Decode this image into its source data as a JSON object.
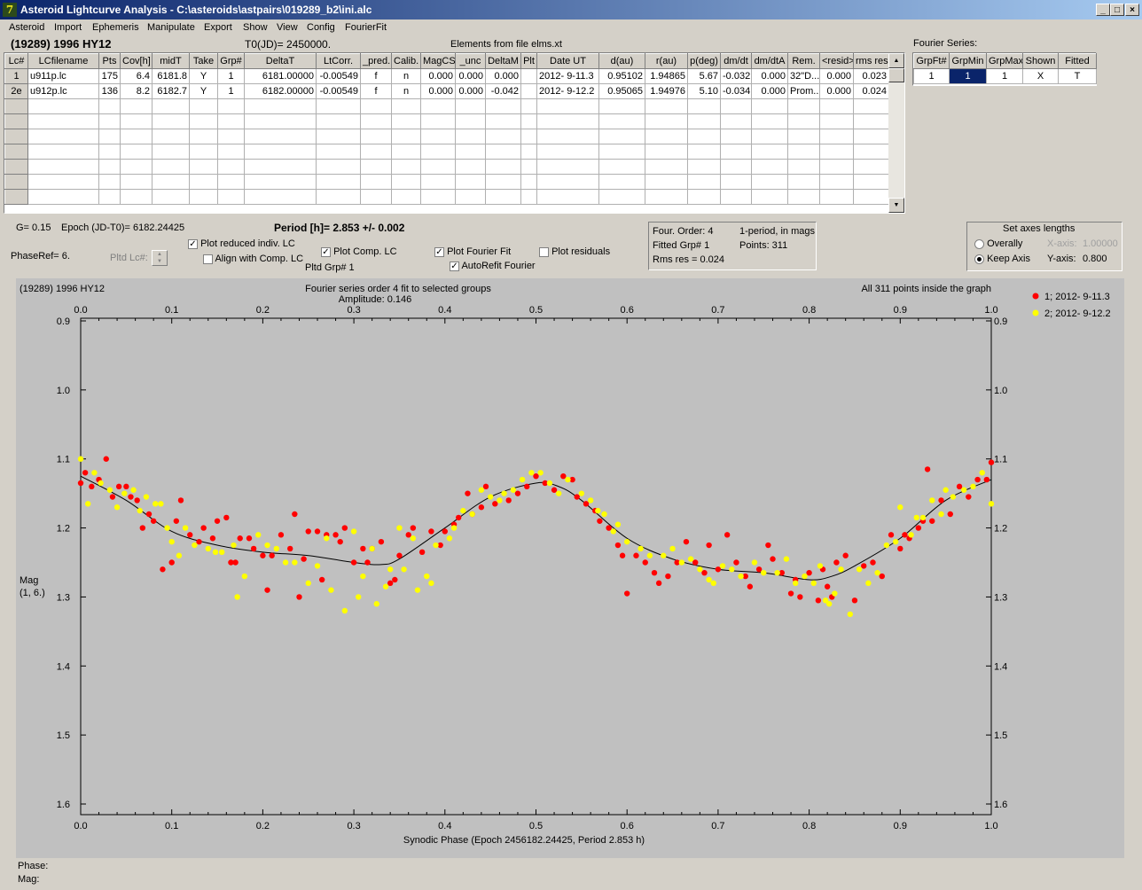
{
  "window": {
    "title": "Asteroid Lightcurve Analysis - C:\\asteroids\\astpairs\\019289_b2\\ini.alc",
    "min": "_",
    "max": "□",
    "close": "×"
  },
  "menu": [
    "Asteroid",
    "Import",
    "Ephemeris",
    "Manipulate",
    "Export",
    "Show",
    "View",
    "Config",
    "FourierFit"
  ],
  "header": {
    "asteroid": "(19289) 1996 HY12",
    "t0": "T0(JD)= 2450000.",
    "elements": "Elements from file elms.xt"
  },
  "lc_table": {
    "columns": [
      "Lc#",
      "LCfilename",
      "Pts",
      "Cov[h]",
      "midT",
      "Take",
      "Grp#",
      "DeltaT",
      "LtCorr.",
      "_pred.",
      "Calib.",
      "MagCS",
      "_unc",
      "DeltaM",
      "Plt",
      "Date UT",
      "d(au)",
      "r(au)",
      "p(deg)",
      "dm/dt",
      "dm/dtA",
      "Rem.",
      "<resid>",
      "rms res"
    ],
    "rows": [
      [
        "1",
        "u911p.lc",
        "175",
        "6.4",
        "6181.8",
        "Y",
        "1",
        "6181.00000",
        "-0.00549",
        "f",
        "n",
        "0.000",
        "0.000",
        "0.000",
        "",
        "2012- 9-11.3",
        "0.95102",
        "1.94865",
        "5.67",
        "-0.032",
        "0.000",
        "32\"D...",
        "0.000",
        "0.023"
      ],
      [
        "2e",
        "u912p.lc",
        "136",
        "8.2",
        "6182.7",
        "Y",
        "1",
        "6182.00000",
        "-0.00549",
        "f",
        "n",
        "0.000",
        "0.000",
        "-0.042",
        "",
        "2012- 9-12.2",
        "0.95065",
        "1.94976",
        "5.10",
        "-0.034",
        "0.000",
        "Prom...",
        "0.000",
        "0.024"
      ]
    ]
  },
  "fourier_series": {
    "label": "Fourier Series:",
    "columns": [
      "GrpFt#",
      "GrpMin",
      "GrpMax",
      "Shown",
      "Fitted"
    ],
    "row": [
      "1",
      "1",
      "1",
      "X",
      "T"
    ]
  },
  "controls": {
    "g": "G= 0.15",
    "epoch": "Epoch (JD-T0)= 6182.24425",
    "period": "Period [h]= 2.853 +/- 0.002",
    "phaseref": "PhaseRef= 6.",
    "pltd_lc": "Pltd Lc#:",
    "plot_reduced": "Plot reduced indiv. LC",
    "align_comp": "Align with Comp. LC",
    "plot_comp": "Plot Comp. LC",
    "pltd_grp": "Pltd Grp#  1",
    "plot_fourier": "Plot Fourier Fit",
    "autorefit": "AutoRefit Fourier",
    "plot_residuals": "Plot residuals"
  },
  "fit_info": {
    "order": "Four. Order:  4",
    "period_mode": "1-period, in mags",
    "fitted_grp": "Fitted Grp# 1",
    "points": "Points: 311",
    "rms": "Rms res     = 0.024"
  },
  "axes_panel": {
    "title": "Set axes lengths",
    "overally": "Overally",
    "keep_axis": "Keep Axis",
    "x_label": "X-axis:",
    "x_value": "1.00000",
    "y_label": "Y-axis:",
    "y_value": "0.800"
  },
  "status": {
    "phase": "Phase:",
    "mag": "Mag:"
  },
  "colors": {
    "series1": "#ff0000",
    "series2": "#ffff00",
    "plot_bg": "#c0c0c0",
    "fit": "#000000"
  },
  "chart_data": {
    "type": "scatter",
    "object_label": "(19289) 1996 HY12",
    "title": "Fourier series order 4 fit to selected groups",
    "subtitle": "Amplitude: 0.146",
    "note": "All 311 points inside the graph",
    "xlabel": "Synodic Phase (Epoch 2456182.24425, Period 2.853 h)",
    "ylabel": [
      "Mag",
      "(1, 6.)"
    ],
    "xlim": [
      0,
      1
    ],
    "ylim": [
      1.6,
      0.9
    ],
    "y_inverted": true,
    "xticks": [
      "0.0",
      "0.1",
      "0.2",
      "0.3",
      "0.4",
      "0.5",
      "0.6",
      "0.7",
      "0.8",
      "0.9",
      "1.0"
    ],
    "yticks": [
      "0.9",
      "1.0",
      "1.1",
      "1.2",
      "1.3",
      "1.4",
      "1.5",
      "1.6"
    ],
    "legend_position": "right",
    "series": [
      {
        "name": "1; 2012- 9-11.3",
        "color": "#ff0000",
        "points": [
          [
            0.0,
            1.135
          ],
          [
            0.005,
            1.12
          ],
          [
            0.012,
            1.14
          ],
          [
            0.02,
            1.13
          ],
          [
            0.028,
            1.1
          ],
          [
            0.035,
            1.155
          ],
          [
            0.042,
            1.14
          ],
          [
            0.05,
            1.14
          ],
          [
            0.055,
            1.155
          ],
          [
            0.062,
            1.16
          ],
          [
            0.068,
            1.2
          ],
          [
            0.075,
            1.18
          ],
          [
            0.08,
            1.19
          ],
          [
            0.09,
            1.26
          ],
          [
            0.1,
            1.25
          ],
          [
            0.105,
            1.19
          ],
          [
            0.11,
            1.16
          ],
          [
            0.12,
            1.21
          ],
          [
            0.13,
            1.22
          ],
          [
            0.135,
            1.2
          ],
          [
            0.145,
            1.215
          ],
          [
            0.15,
            1.19
          ],
          [
            0.16,
            1.185
          ],
          [
            0.165,
            1.25
          ],
          [
            0.17,
            1.25
          ],
          [
            0.175,
            1.215
          ],
          [
            0.185,
            1.215
          ],
          [
            0.19,
            1.23
          ],
          [
            0.2,
            1.24
          ],
          [
            0.205,
            1.29
          ],
          [
            0.21,
            1.24
          ],
          [
            0.22,
            1.21
          ],
          [
            0.23,
            1.23
          ],
          [
            0.235,
            1.18
          ],
          [
            0.24,
            1.3
          ],
          [
            0.245,
            1.245
          ],
          [
            0.25,
            1.205
          ],
          [
            0.26,
            1.205
          ],
          [
            0.265,
            1.275
          ],
          [
            0.27,
            1.21
          ],
          [
            0.28,
            1.21
          ],
          [
            0.285,
            1.22
          ],
          [
            0.29,
            1.2
          ],
          [
            0.3,
            1.25
          ],
          [
            0.31,
            1.23
          ],
          [
            0.315,
            1.25
          ],
          [
            0.32,
            1.23
          ],
          [
            0.33,
            1.22
          ],
          [
            0.34,
            1.28
          ],
          [
            0.345,
            1.275
          ],
          [
            0.35,
            1.24
          ],
          [
            0.36,
            1.21
          ],
          [
            0.365,
            1.2
          ],
          [
            0.375,
            1.235
          ],
          [
            0.385,
            1.205
          ],
          [
            0.395,
            1.225
          ],
          [
            0.4,
            1.205
          ],
          [
            0.41,
            1.195
          ],
          [
            0.415,
            1.185
          ],
          [
            0.425,
            1.15
          ],
          [
            0.43,
            1.18
          ],
          [
            0.44,
            1.17
          ],
          [
            0.445,
            1.14
          ],
          [
            0.455,
            1.165
          ],
          [
            0.47,
            1.16
          ],
          [
            0.48,
            1.15
          ],
          [
            0.49,
            1.14
          ],
          [
            0.5,
            1.125
          ],
          [
            0.51,
            1.135
          ],
          [
            0.52,
            1.145
          ],
          [
            0.53,
            1.125
          ],
          [
            0.54,
            1.13
          ],
          [
            0.545,
            1.155
          ],
          [
            0.555,
            1.165
          ],
          [
            0.565,
            1.175
          ],
          [
            0.57,
            1.19
          ],
          [
            0.58,
            1.2
          ],
          [
            0.59,
            1.225
          ],
          [
            0.595,
            1.24
          ],
          [
            0.6,
            1.295
          ],
          [
            0.61,
            1.24
          ],
          [
            0.62,
            1.25
          ],
          [
            0.63,
            1.265
          ],
          [
            0.635,
            1.28
          ],
          [
            0.645,
            1.27
          ],
          [
            0.655,
            1.25
          ],
          [
            0.665,
            1.22
          ],
          [
            0.675,
            1.25
          ],
          [
            0.685,
            1.265
          ],
          [
            0.69,
            1.225
          ],
          [
            0.7,
            1.26
          ],
          [
            0.71,
            1.21
          ],
          [
            0.72,
            1.25
          ],
          [
            0.73,
            1.27
          ],
          [
            0.735,
            1.285
          ],
          [
            0.745,
            1.26
          ],
          [
            0.755,
            1.225
          ],
          [
            0.76,
            1.245
          ],
          [
            0.77,
            1.265
          ],
          [
            0.78,
            1.295
          ],
          [
            0.785,
            1.275
          ],
          [
            0.79,
            1.3
          ],
          [
            0.8,
            1.265
          ],
          [
            0.81,
            1.305
          ],
          [
            0.815,
            1.26
          ],
          [
            0.82,
            1.285
          ],
          [
            0.825,
            1.3
          ],
          [
            0.83,
            1.25
          ],
          [
            0.84,
            1.24
          ],
          [
            0.85,
            1.305
          ],
          [
            0.86,
            1.255
          ],
          [
            0.87,
            1.25
          ],
          [
            0.88,
            1.27
          ],
          [
            0.89,
            1.21
          ],
          [
            0.9,
            1.23
          ],
          [
            0.905,
            1.21
          ],
          [
            0.91,
            1.215
          ],
          [
            0.92,
            1.2
          ],
          [
            0.925,
            1.19
          ],
          [
            0.93,
            1.115
          ],
          [
            0.935,
            1.19
          ],
          [
            0.945,
            1.16
          ],
          [
            0.955,
            1.18
          ],
          [
            0.965,
            1.14
          ],
          [
            0.975,
            1.155
          ],
          [
            0.985,
            1.13
          ],
          [
            0.995,
            1.13
          ],
          [
            1.0,
            1.105
          ]
        ]
      },
      {
        "name": "2; 2012- 9-12.2",
        "color": "#ffff00",
        "points": [
          [
            0.0,
            1.1
          ],
          [
            0.008,
            1.165
          ],
          [
            0.015,
            1.12
          ],
          [
            0.022,
            1.135
          ],
          [
            0.032,
            1.145
          ],
          [
            0.04,
            1.17
          ],
          [
            0.048,
            1.15
          ],
          [
            0.058,
            1.145
          ],
          [
            0.065,
            1.175
          ],
          [
            0.072,
            1.155
          ],
          [
            0.082,
            1.165
          ],
          [
            0.088,
            1.165
          ],
          [
            0.095,
            1.2
          ],
          [
            0.1,
            1.22
          ],
          [
            0.108,
            1.24
          ],
          [
            0.115,
            1.2
          ],
          [
            0.125,
            1.225
          ],
          [
            0.14,
            1.23
          ],
          [
            0.148,
            1.235
          ],
          [
            0.155,
            1.235
          ],
          [
            0.168,
            1.225
          ],
          [
            0.172,
            1.3
          ],
          [
            0.18,
            1.27
          ],
          [
            0.195,
            1.21
          ],
          [
            0.205,
            1.225
          ],
          [
            0.215,
            1.23
          ],
          [
            0.225,
            1.25
          ],
          [
            0.235,
            1.25
          ],
          [
            0.25,
            1.28
          ],
          [
            0.26,
            1.255
          ],
          [
            0.27,
            1.215
          ],
          [
            0.275,
            1.29
          ],
          [
            0.29,
            1.32
          ],
          [
            0.3,
            1.205
          ],
          [
            0.305,
            1.3
          ],
          [
            0.31,
            1.27
          ],
          [
            0.32,
            1.23
          ],
          [
            0.325,
            1.31
          ],
          [
            0.335,
            1.285
          ],
          [
            0.34,
            1.26
          ],
          [
            0.35,
            1.2
          ],
          [
            0.355,
            1.26
          ],
          [
            0.365,
            1.215
          ],
          [
            0.37,
            1.29
          ],
          [
            0.38,
            1.27
          ],
          [
            0.385,
            1.28
          ],
          [
            0.39,
            1.225
          ],
          [
            0.405,
            1.215
          ],
          [
            0.41,
            1.2
          ],
          [
            0.42,
            1.175
          ],
          [
            0.43,
            1.18
          ],
          [
            0.44,
            1.145
          ],
          [
            0.45,
            1.155
          ],
          [
            0.46,
            1.16
          ],
          [
            0.465,
            1.15
          ],
          [
            0.475,
            1.145
          ],
          [
            0.485,
            1.13
          ],
          [
            0.495,
            1.12
          ],
          [
            0.505,
            1.12
          ],
          [
            0.515,
            1.135
          ],
          [
            0.525,
            1.15
          ],
          [
            0.535,
            1.13
          ],
          [
            0.55,
            1.15
          ],
          [
            0.56,
            1.16
          ],
          [
            0.568,
            1.175
          ],
          [
            0.575,
            1.18
          ],
          [
            0.585,
            1.205
          ],
          [
            0.59,
            1.195
          ],
          [
            0.6,
            1.22
          ],
          [
            0.615,
            1.23
          ],
          [
            0.625,
            1.24
          ],
          [
            0.64,
            1.24
          ],
          [
            0.65,
            1.23
          ],
          [
            0.66,
            1.25
          ],
          [
            0.67,
            1.245
          ],
          [
            0.68,
            1.26
          ],
          [
            0.69,
            1.275
          ],
          [
            0.695,
            1.28
          ],
          [
            0.705,
            1.255
          ],
          [
            0.715,
            1.26
          ],
          [
            0.725,
            1.27
          ],
          [
            0.74,
            1.25
          ],
          [
            0.75,
            1.265
          ],
          [
            0.765,
            1.265
          ],
          [
            0.775,
            1.245
          ],
          [
            0.785,
            1.28
          ],
          [
            0.795,
            1.27
          ],
          [
            0.805,
            1.28
          ],
          [
            0.812,
            1.255
          ],
          [
            0.818,
            1.305
          ],
          [
            0.822,
            1.31
          ],
          [
            0.828,
            1.295
          ],
          [
            0.835,
            1.26
          ],
          [
            0.845,
            1.325
          ],
          [
            0.855,
            1.26
          ],
          [
            0.865,
            1.28
          ],
          [
            0.875,
            1.265
          ],
          [
            0.885,
            1.225
          ],
          [
            0.895,
            1.22
          ],
          [
            0.9,
            1.17
          ],
          [
            0.912,
            1.21
          ],
          [
            0.918,
            1.185
          ],
          [
            0.925,
            1.185
          ],
          [
            0.935,
            1.16
          ],
          [
            0.945,
            1.18
          ],
          [
            0.95,
            1.145
          ],
          [
            0.958,
            1.155
          ],
          [
            0.97,
            1.145
          ],
          [
            0.98,
            1.14
          ],
          [
            0.99,
            1.12
          ],
          [
            1.0,
            1.165
          ]
        ]
      }
    ],
    "fit_curve": [
      [
        0.0,
        1.125
      ],
      [
        0.05,
        1.16
      ],
      [
        0.1,
        1.205
      ],
      [
        0.15,
        1.225
      ],
      [
        0.2,
        1.235
      ],
      [
        0.25,
        1.24
      ],
      [
        0.3,
        1.25
      ],
      [
        0.33,
        1.253
      ],
      [
        0.35,
        1.245
      ],
      [
        0.4,
        1.2
      ],
      [
        0.45,
        1.155
      ],
      [
        0.5,
        1.135
      ],
      [
        0.525,
        1.14
      ],
      [
        0.55,
        1.16
      ],
      [
        0.6,
        1.215
      ],
      [
        0.65,
        1.245
      ],
      [
        0.7,
        1.26
      ],
      [
        0.75,
        1.265
      ],
      [
        0.8,
        1.275
      ],
      [
        0.825,
        1.27
      ],
      [
        0.85,
        1.255
      ],
      [
        0.9,
        1.215
      ],
      [
        0.95,
        1.16
      ],
      [
        1.0,
        1.13
      ]
    ]
  }
}
